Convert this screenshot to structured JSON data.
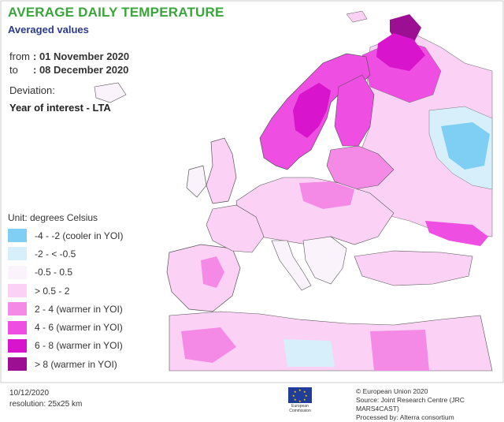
{
  "title": "AVERAGE DAILY TEMPERATURE",
  "subtitle": "Averaged values",
  "period": {
    "from_label": "from",
    "from_value": ": 01 November 2020",
    "to_label": "to",
    "to_value": ": 08 December 2020"
  },
  "deviation_label": "Deviation:",
  "comparison": "Year of interest - LTA",
  "legend": {
    "title": "Unit: degrees Celsius",
    "items": [
      {
        "label": "-4 - -2 (cooler in YOI)",
        "color": "#7fcff5"
      },
      {
        "label": "-2 - < -0.5",
        "color": "#d6effa"
      },
      {
        "label": "-0.5 - 0.5",
        "color": "#fbf3fb"
      },
      {
        "label": "> 0.5 - 2",
        "color": "#fbd2f5"
      },
      {
        "label": "2 - 4 (warmer in YOI)",
        "color": "#f58ae6"
      },
      {
        "label": "4 - 6 (warmer in YOI)",
        "color": "#ef4ee2"
      },
      {
        "label": "6 - 8 (warmer in YOI)",
        "color": "#d814cc"
      },
      {
        "label": "> 8 (warmer in YOI)",
        "color": "#9c0f93"
      }
    ]
  },
  "footer": {
    "date": "10/12/2020",
    "resolution": "resolution: 25x25 km",
    "copyright": "© European Union 2020",
    "source": "Source: Joint Research Centre (JRC MARS4CAST)",
    "processed": "Processed by: Alterra consortium"
  },
  "logo_text": "European Commission",
  "colors": {
    "sea": "#ffffff",
    "border": "#555555",
    "title": "#3aa53a",
    "subtitle": "#2c3a8c"
  }
}
